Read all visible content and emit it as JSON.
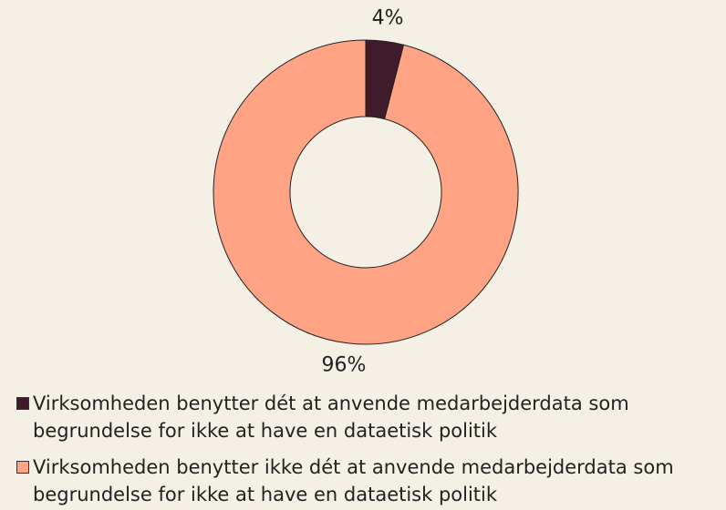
{
  "chart_data": {
    "type": "donut",
    "categories": [
      "Virksomheden benytter dét at anvende medarbejderdata som begrundelse for ikke at have en dataetisk politik",
      "Virksomheden benytter ikke dét at anvende medarbejderdata som begrundelse for ikke at have en dataetisk politik"
    ],
    "values": [
      4,
      96
    ],
    "value_labels": [
      "4%",
      "96%"
    ],
    "colors": [
      "#3f1b2b",
      "#ffa384"
    ]
  }
}
